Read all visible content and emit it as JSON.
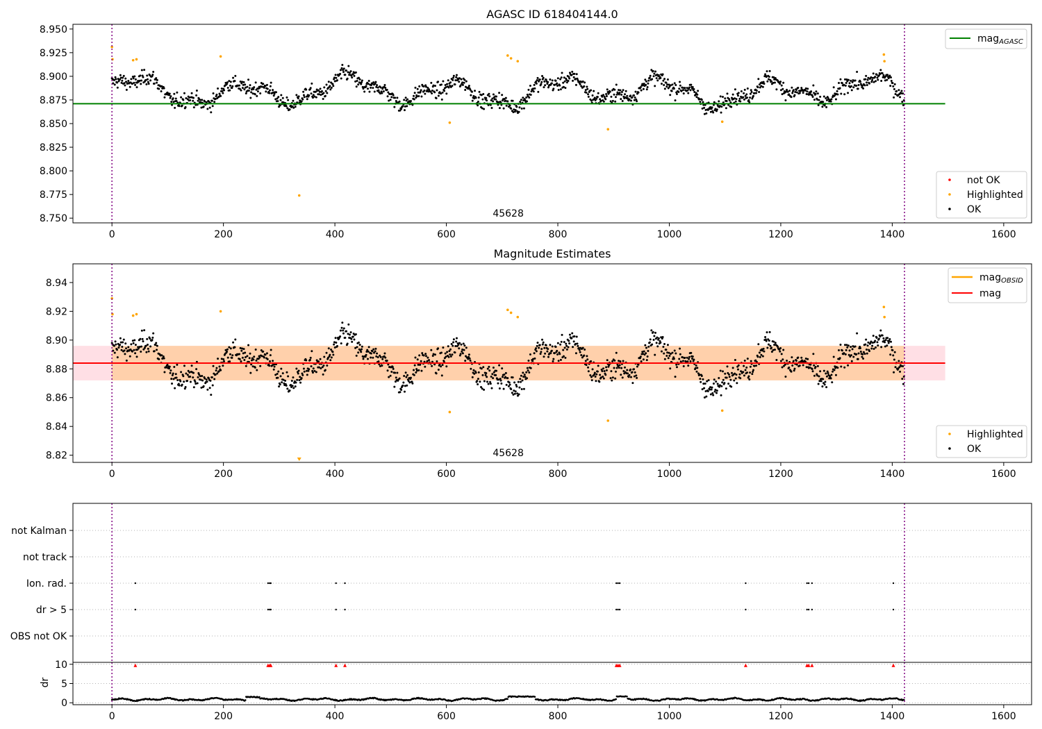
{
  "chart_data": [
    {
      "type": "scatter",
      "panel": "agasc",
      "title": "AGASC ID 618404144.0",
      "xlim": [
        -70,
        1650
      ],
      "ylim": [
        8.745,
        8.955
      ],
      "x_ticks": [
        0,
        200,
        400,
        600,
        800,
        1000,
        1200,
        1400,
        1600
      ],
      "y_ticks": [
        8.75,
        8.775,
        8.8,
        8.825,
        8.85,
        8.875,
        8.9,
        8.925,
        8.95
      ],
      "y_tick_labels": [
        "8.750",
        "8.775",
        "8.800",
        "8.825",
        "8.850",
        "8.875",
        "8.900",
        "8.925",
        "8.950"
      ],
      "obs_boundaries": [
        0,
        1422
      ],
      "annotation": {
        "text": "45628",
        "x": 711
      },
      "mean_line": {
        "label": "mag",
        "label_sub": "AGASC",
        "value": 8.871,
        "x_range": [
          -70,
          1495
        ],
        "color": "#008000"
      },
      "legend_line_position": "top-right",
      "legend_points_position": "bottom-right",
      "legend_points": [
        {
          "label": "not OK",
          "color": "#ff0000"
        },
        {
          "label": "Highlighted",
          "color": "#ffa500"
        },
        {
          "label": "OK",
          "color": "#000000"
        }
      ],
      "highlighted": [
        [
          0,
          8.931
        ],
        [
          1,
          8.918
        ],
        [
          38,
          8.917
        ],
        [
          44,
          8.918
        ],
        [
          195,
          8.921
        ],
        [
          336,
          8.774
        ],
        [
          606,
          8.851
        ],
        [
          710,
          8.922
        ],
        [
          716,
          8.919
        ],
        [
          728,
          8.916
        ],
        [
          890,
          8.844
        ],
        [
          1095,
          8.852
        ],
        [
          1385,
          8.923
        ],
        [
          1386,
          8.916
        ]
      ],
      "grid": false
    },
    {
      "type": "scatter",
      "panel": "estimates",
      "title": "Magnitude Estimates",
      "xlim": [
        -70,
        1650
      ],
      "ylim": [
        8.815,
        8.953
      ],
      "x_ticks": [
        0,
        200,
        400,
        600,
        800,
        1000,
        1200,
        1400,
        1600
      ],
      "y_ticks": [
        8.82,
        8.84,
        8.86,
        8.88,
        8.9,
        8.92,
        8.94
      ],
      "y_tick_labels": [
        "8.82",
        "8.84",
        "8.86",
        "8.88",
        "8.90",
        "8.92",
        "8.94"
      ],
      "obs_boundaries": [
        0,
        1422
      ],
      "annotation": {
        "text": "45628",
        "x": 711
      },
      "mag_line": {
        "label": "mag",
        "value": 8.884,
        "x_range": [
          -70,
          1495
        ],
        "color": "#ff0000"
      },
      "mag_band": {
        "low": 8.872,
        "high": 8.896,
        "x_range": [
          -70,
          1495
        ],
        "color": "#ffc0cb"
      },
      "mag_obsid": {
        "label": "mag",
        "label_sub": "OBSID",
        "value": 8.884,
        "band_low": 8.872,
        "band_high": 8.896,
        "x_range": [
          0,
          1422
        ],
        "color": "#ffa500"
      },
      "legend_line_position": "top-right",
      "legend_points_position": "bottom-right",
      "legend_points": [
        {
          "label": "Highlighted",
          "color": "#ffa500"
        },
        {
          "label": "OK",
          "color": "#000000"
        }
      ],
      "highlighted": [
        [
          0,
          8.929
        ],
        [
          1,
          8.918
        ],
        [
          38,
          8.917
        ],
        [
          44,
          8.918
        ],
        [
          195,
          8.92
        ],
        [
          606,
          8.85
        ],
        [
          710,
          8.921
        ],
        [
          716,
          8.919
        ],
        [
          728,
          8.916
        ],
        [
          890,
          8.844
        ],
        [
          1095,
          8.851
        ],
        [
          1385,
          8.923
        ],
        [
          1386,
          8.916
        ]
      ],
      "offscale_below": [
        [
          336,
          8.774
        ]
      ],
      "grid": false
    },
    {
      "type": "scatter",
      "panel": "flags",
      "xlim": [
        -70,
        1650
      ],
      "categories": [
        "not Kalman",
        "not track",
        "Ion. rad.",
        "dr > 5",
        "OBS not OK"
      ],
      "obs_boundaries": [
        0,
        1422
      ],
      "flag_points": {
        "Ion. rad.": [
          42,
          280,
          283,
          285,
          402,
          418,
          905,
          908,
          911,
          1137,
          1247,
          1250,
          1256,
          1402
        ],
        "dr > 5": [
          42,
          280,
          283,
          285,
          402,
          418,
          905,
          908,
          911,
          1137,
          1247,
          1250,
          1256,
          1402
        ]
      },
      "grid": "horizontal dotted"
    },
    {
      "type": "scatter",
      "panel": "dr",
      "ylabel": "dr",
      "xlim": [
        -70,
        1650
      ],
      "ylim": [
        -0.5,
        10.5
      ],
      "x_ticks": [
        0,
        200,
        400,
        600,
        800,
        1000,
        1200,
        1400,
        1600
      ],
      "y_ticks": [
        0,
        5,
        10
      ],
      "y_tick_labels": [
        "0",
        "5",
        "10"
      ],
      "obs_boundaries": [
        0,
        1422
      ],
      "clipped_markers": [
        42,
        280,
        283,
        285,
        402,
        418,
        905,
        908,
        911,
        1137,
        1247,
        1250,
        1256,
        1402
      ],
      "dr_bumps": [
        [
          240,
          265,
          1.6
        ],
        [
          710,
          760,
          1.7
        ],
        [
          905,
          925,
          1.8
        ]
      ],
      "grid": "horizontal dotted"
    }
  ]
}
